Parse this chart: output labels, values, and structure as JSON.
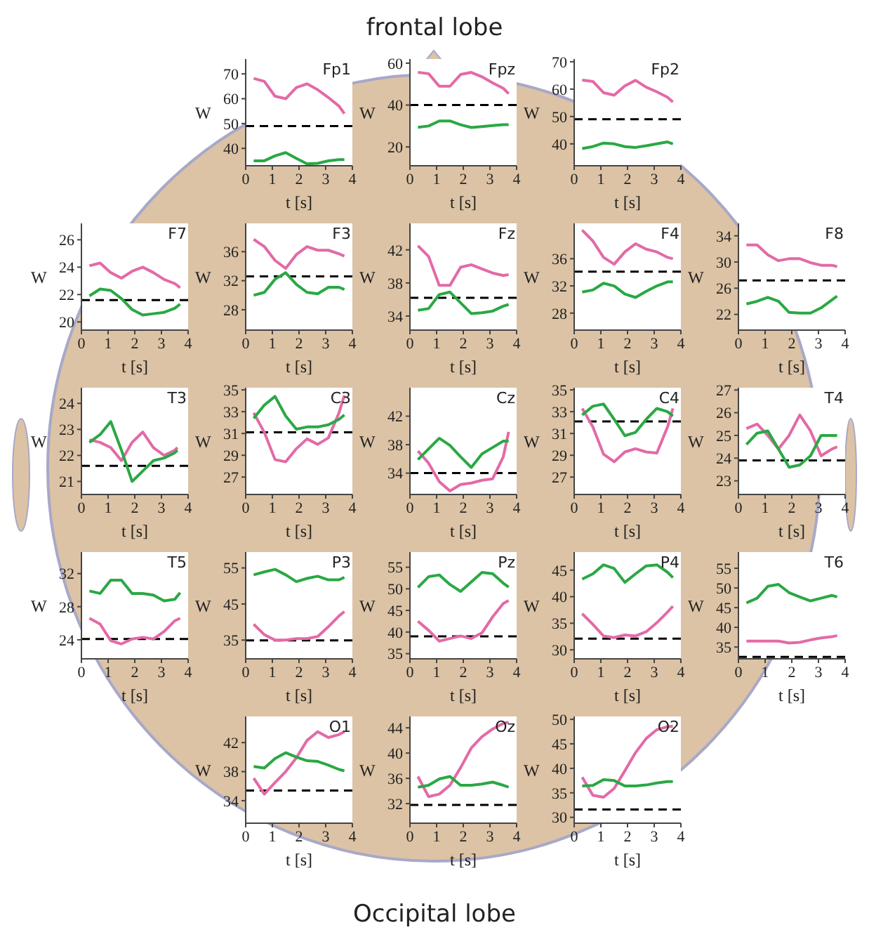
{
  "chart_data": [
    {
      "type": "other",
      "annotations": [
        "frontal lobe",
        "Occipital lobe"
      ]
    },
    {
      "type": "line",
      "title": "Fp1",
      "xlabel": "t [s]",
      "ylabel": "W",
      "x": [
        0.3,
        0.7,
        1.1,
        1.5,
        1.9,
        2.3,
        2.7,
        3.1,
        3.5,
        3.7
      ],
      "xlim": [
        0,
        4
      ],
      "xticks": [
        0,
        1,
        2,
        3,
        4
      ],
      "ylim": [
        33,
        76
      ],
      "yticks": [
        40,
        50,
        60,
        70
      ],
      "series": [
        {
          "color": "#e36aa6",
          "values": [
            68.2,
            67,
            61,
            60,
            64.5,
            66,
            63.6,
            60.5,
            57,
            54
          ]
        },
        {
          "color": "#2aa844",
          "values": [
            35,
            35,
            37,
            38.3,
            36,
            33.8,
            34,
            35,
            35.5,
            35.5
          ]
        }
      ],
      "ref_lines": [
        {
          "axis": "y",
          "value": 49,
          "color": "#000000",
          "line_style": "dashed"
        }
      ]
    },
    {
      "type": "line",
      "title": "Fpz",
      "xlabel": "t [s]",
      "ylabel": "W",
      "x": [
        0.3,
        0.7,
        1.1,
        1.5,
        1.9,
        2.3,
        2.7,
        3.1,
        3.5,
        3.7
      ],
      "xlim": [
        0,
        4
      ],
      "xticks": [
        0,
        1,
        2,
        3,
        4
      ],
      "ylim": [
        11,
        62
      ],
      "yticks": [
        20,
        40,
        60
      ],
      "series": [
        {
          "color": "#e36aa6",
          "values": [
            55.6,
            55,
            49,
            49,
            54.6,
            55.6,
            53.5,
            50.6,
            48,
            45.4
          ]
        },
        {
          "color": "#2aa844",
          "values": [
            29.4,
            30,
            32.4,
            32.4,
            30.6,
            29.3,
            29.7,
            30.2,
            30.6,
            30.6
          ]
        }
      ],
      "ref_lines": [
        {
          "axis": "y",
          "value": 40,
          "color": "#000000",
          "line_style": "dashed"
        }
      ]
    },
    {
      "type": "line",
      "title": "Fp2",
      "xlabel": "t [s]",
      "ylabel": "W",
      "x": [
        0.3,
        0.7,
        1.1,
        1.5,
        1.9,
        2.3,
        2.7,
        3.1,
        3.5,
        3.7
      ],
      "xlim": [
        0,
        4
      ],
      "xticks": [
        0,
        1,
        2,
        3,
        4
      ],
      "ylim": [
        32,
        71
      ],
      "yticks": [
        40,
        50,
        60,
        70
      ],
      "series": [
        {
          "color": "#e36aa6",
          "values": [
            63.3,
            62.8,
            58.7,
            57.8,
            61.2,
            63.2,
            60.7,
            59,
            57,
            55.3
          ]
        },
        {
          "color": "#2aa844",
          "values": [
            38.3,
            39,
            40.3,
            40,
            39,
            38.7,
            39.3,
            40,
            40.7,
            40
          ]
        }
      ],
      "ref_lines": [
        {
          "axis": "y",
          "value": 49,
          "color": "#000000",
          "line_style": "dashed"
        }
      ]
    },
    {
      "type": "line",
      "title": "F7",
      "xlabel": "t [s]",
      "ylabel": "W",
      "x": [
        0.3,
        0.7,
        1.1,
        1.5,
        1.9,
        2.3,
        2.7,
        3.1,
        3.5,
        3.7
      ],
      "xlim": [
        0,
        4
      ],
      "xticks": [
        0,
        1,
        2,
        3,
        4
      ],
      "ylim": [
        19.4,
        27.2
      ],
      "yticks": [
        20,
        22,
        24,
        26
      ],
      "series": [
        {
          "color": "#e36aa6",
          "values": [
            24.1,
            24.3,
            23.6,
            23.2,
            23.7,
            24,
            23.6,
            23.1,
            22.8,
            22.5
          ]
        },
        {
          "color": "#2aa844",
          "values": [
            21.9,
            22.4,
            22.3,
            21.7,
            20.9,
            20.5,
            20.6,
            20.7,
            21,
            21.3
          ]
        }
      ],
      "ref_lines": [
        {
          "axis": "y",
          "value": 21.6,
          "color": "#000000",
          "line_style": "dashed"
        }
      ]
    },
    {
      "type": "line",
      "title": "F3",
      "xlabel": "t [s]",
      "ylabel": "W",
      "x": [
        0.3,
        0.7,
        1.1,
        1.5,
        1.9,
        2.3,
        2.7,
        3.1,
        3.5,
        3.7
      ],
      "xlim": [
        0,
        4
      ],
      "xticks": [
        0,
        1,
        2,
        3,
        4
      ],
      "ylim": [
        25.2,
        39.9
      ],
      "yticks": [
        28,
        32,
        36
      ],
      "series": [
        {
          "color": "#e36aa6",
          "values": [
            37.7,
            36.7,
            34.8,
            33.7,
            35.6,
            36.7,
            36.2,
            36.2,
            35.7,
            35.4
          ]
        },
        {
          "color": "#2aa844",
          "values": [
            30,
            30.4,
            32.2,
            33.1,
            31.5,
            30.4,
            30.2,
            31.1,
            31.1,
            30.8
          ]
        }
      ],
      "ref_lines": [
        {
          "axis": "y",
          "value": 32.6,
          "color": "#000000",
          "line_style": "dashed"
        }
      ]
    },
    {
      "type": "line",
      "title": "Fz",
      "xlabel": "t [s]",
      "ylabel": "W",
      "x": [
        0.3,
        0.7,
        1.1,
        1.5,
        1.9,
        2.3,
        2.7,
        3.1,
        3.5,
        3.7
      ],
      "xlim": [
        0,
        4
      ],
      "xticks": [
        0,
        1,
        2,
        3,
        4
      ],
      "ylim": [
        32.3,
        45.2
      ],
      "yticks": [
        34,
        38,
        42
      ],
      "series": [
        {
          "color": "#e36aa6",
          "values": [
            42.5,
            41.2,
            37.7,
            37.7,
            39.9,
            40.2,
            39.7,
            39.2,
            38.9,
            39
          ]
        },
        {
          "color": "#2aa844",
          "values": [
            34.7,
            34.9,
            36.6,
            36.9,
            35.6,
            34.3,
            34.4,
            34.6,
            35.2,
            35.4
          ]
        }
      ],
      "ref_lines": [
        {
          "axis": "y",
          "value": 36.2,
          "color": "#000000",
          "line_style": "dashed"
        }
      ]
    },
    {
      "type": "line",
      "title": "F4",
      "xlabel": "t [s]",
      "ylabel": "W",
      "x": [
        0.3,
        0.7,
        1.1,
        1.5,
        1.9,
        2.3,
        2.7,
        3.1,
        3.5,
        3.7
      ],
      "xlim": [
        0,
        4
      ],
      "xticks": [
        0,
        1,
        2,
        3,
        4
      ],
      "ylim": [
        25.5,
        41.2
      ],
      "yticks": [
        28,
        32,
        36
      ],
      "series": [
        {
          "color": "#e36aa6",
          "values": [
            40.2,
            38.6,
            36.2,
            35.2,
            37,
            38.2,
            37.4,
            37,
            36.2,
            36
          ]
        },
        {
          "color": "#2aa844",
          "values": [
            31.1,
            31.4,
            32.4,
            32,
            30.8,
            30.3,
            31.2,
            32,
            32.6,
            32.6
          ]
        }
      ],
      "ref_lines": [
        {
          "axis": "y",
          "value": 34.1,
          "color": "#000000",
          "line_style": "dashed"
        }
      ]
    },
    {
      "type": "line",
      "title": "F8",
      "xlabel": "t [s]",
      "ylabel": "W",
      "x": [
        0.3,
        0.7,
        1.1,
        1.5,
        1.9,
        2.3,
        2.7,
        3.1,
        3.5,
        3.7
      ],
      "xlim": [
        0,
        4
      ],
      "xticks": [
        0,
        1,
        2,
        3,
        4
      ],
      "ylim": [
        19.6,
        35.9
      ],
      "yticks": [
        22,
        26,
        30,
        34
      ],
      "series": [
        {
          "color": "#e36aa6",
          "values": [
            32.6,
            32.6,
            31.1,
            30.2,
            30.5,
            30.5,
            29.9,
            29.5,
            29.5,
            29.3
          ]
        },
        {
          "color": "#2aa844",
          "values": [
            23.6,
            24,
            24.6,
            24,
            22.3,
            22.2,
            22.2,
            23,
            24.2,
            24.8
          ]
        }
      ],
      "ref_lines": [
        {
          "axis": "y",
          "value": 27.2,
          "color": "#000000",
          "line_style": "dashed"
        }
      ]
    },
    {
      "type": "line",
      "title": "T3",
      "xlabel": "t [s]",
      "ylabel": "W",
      "x": [
        0.3,
        0.7,
        1.1,
        1.5,
        1.9,
        2.3,
        2.7,
        3.1,
        3.5,
        3.6
      ],
      "xlim": [
        0,
        4
      ],
      "xticks": [
        0,
        1,
        2,
        3,
        4
      ],
      "ylim": [
        20.5,
        24.6
      ],
      "yticks": [
        21,
        22,
        23,
        24
      ],
      "series": [
        {
          "color": "#e36aa6",
          "values": [
            22.6,
            22.5,
            22.3,
            21.8,
            22.5,
            22.9,
            22.3,
            22,
            22.2,
            22.3
          ]
        },
        {
          "color": "#2aa844",
          "values": [
            22.5,
            22.8,
            23.3,
            22.2,
            21,
            21.4,
            21.8,
            21.9,
            22.1,
            22.2
          ]
        }
      ],
      "ref_lines": [
        {
          "axis": "y",
          "value": 21.6,
          "color": "#000000",
          "line_style": "dashed"
        }
      ]
    },
    {
      "type": "line",
      "title": "C3",
      "xlabel": "t [s]",
      "ylabel": "W",
      "x": [
        0.3,
        0.7,
        1.1,
        1.5,
        1.9,
        2.3,
        2.7,
        3.1,
        3.5,
        3.7
      ],
      "xlim": [
        0,
        4
      ],
      "xticks": [
        0,
        1,
        2,
        3,
        4
      ],
      "ylim": [
        25.4,
        35.2
      ],
      "yticks": [
        27,
        29,
        31,
        33,
        35
      ],
      "series": [
        {
          "color": "#e36aa6",
          "values": [
            32.9,
            31.1,
            28.6,
            28.4,
            29.6,
            30.5,
            30,
            30.6,
            32.9,
            34.5
          ]
        },
        {
          "color": "#2aa844",
          "values": [
            32.4,
            33.6,
            34.4,
            32.6,
            31.4,
            31.6,
            31.6,
            31.8,
            32.3,
            32.7
          ]
        }
      ],
      "ref_lines": [
        {
          "axis": "y",
          "value": 31.1,
          "color": "#000000",
          "line_style": "dashed"
        }
      ]
    },
    {
      "type": "line",
      "title": "Cz",
      "xlabel": "t [s]",
      "ylabel": "W",
      "x": [
        0.3,
        0.7,
        1.1,
        1.5,
        1.9,
        2.3,
        2.7,
        3.1,
        3.5,
        3.7
      ],
      "xlim": [
        0,
        4
      ],
      "xticks": [
        0,
        1,
        2,
        3,
        4
      ],
      "ylim": [
        31,
        46
      ],
      "yticks": [
        34,
        38,
        42
      ],
      "series": [
        {
          "color": "#e36aa6",
          "values": [
            37.1,
            35.4,
            32.8,
            31.5,
            32.4,
            32.6,
            33,
            33.2,
            36.3,
            39.8
          ]
        },
        {
          "color": "#2aa844",
          "values": [
            35.9,
            37.4,
            38.9,
            37.9,
            36.3,
            34.8,
            36.7,
            37.6,
            38.5,
            38.5
          ]
        }
      ],
      "ref_lines": [
        {
          "axis": "y",
          "value": 34,
          "color": "#000000",
          "line_style": "dashed"
        }
      ]
    },
    {
      "type": "line",
      "title": "C4",
      "xlabel": "t [s]",
      "ylabel": "W",
      "x": [
        0.3,
        0.7,
        1.1,
        1.5,
        1.9,
        2.3,
        2.7,
        3.1,
        3.5,
        3.7
      ],
      "xlim": [
        0,
        4
      ],
      "xticks": [
        0,
        1,
        2,
        3,
        4
      ],
      "ylim": [
        25.4,
        35.2
      ],
      "yticks": [
        27,
        29,
        31,
        33,
        35
      ],
      "series": [
        {
          "color": "#e36aa6",
          "values": [
            33.3,
            31.6,
            29.1,
            28.4,
            29.3,
            29.6,
            29.3,
            29.2,
            31.6,
            33.3
          ]
        },
        {
          "color": "#2aa844",
          "values": [
            32.7,
            33.5,
            33.7,
            32.3,
            30.8,
            31.1,
            32.3,
            33.3,
            33,
            32.6
          ]
        }
      ],
      "ref_lines": [
        {
          "axis": "y",
          "value": 32.1,
          "color": "#000000",
          "line_style": "dashed"
        }
      ]
    },
    {
      "type": "line",
      "title": "T4",
      "xlabel": "t [s]",
      "ylabel": "W",
      "x": [
        0.3,
        0.7,
        1.1,
        1.5,
        1.9,
        2.3,
        2.7,
        3.1,
        3.5,
        3.7
      ],
      "xlim": [
        0,
        4
      ],
      "xticks": [
        0,
        1,
        2,
        3,
        4
      ],
      "ylim": [
        22.4,
        27.1
      ],
      "yticks": [
        23,
        24,
        25,
        26,
        27
      ],
      "series": [
        {
          "color": "#e36aa6",
          "values": [
            25.3,
            25.5,
            25,
            24.4,
            25,
            25.9,
            25.2,
            24.1,
            24.4,
            24.5
          ]
        },
        {
          "color": "#2aa844",
          "values": [
            24.6,
            25.1,
            25.2,
            24.4,
            23.6,
            23.7,
            24.1,
            25,
            25,
            25
          ]
        }
      ],
      "ref_lines": [
        {
          "axis": "y",
          "value": 23.9,
          "color": "#000000",
          "line_style": "dashed"
        }
      ]
    },
    {
      "type": "line",
      "title": "T5",
      "xlabel": "t [s]",
      "ylabel": "W",
      "x": [
        0.3,
        0.7,
        1.1,
        1.5,
        1.9,
        2.3,
        2.7,
        3.1,
        3.5,
        3.7
      ],
      "xlim": [
        0,
        4
      ],
      "xticks": [
        0,
        1,
        2,
        3,
        4
      ],
      "ylim": [
        21.7,
        34.6
      ],
      "yticks": [
        24,
        28,
        32
      ],
      "series": [
        {
          "color": "#e36aa6",
          "values": [
            26.6,
            25.9,
            23.9,
            23.5,
            24.1,
            24.3,
            24.1,
            25,
            26.3,
            26.6
          ]
        },
        {
          "color": "#2aa844",
          "values": [
            29.9,
            29.6,
            31.2,
            31.2,
            29.6,
            29.6,
            29.4,
            28.7,
            28.9,
            29.7
          ]
        }
      ],
      "ref_lines": [
        {
          "axis": "y",
          "value": 24.1,
          "color": "#000000",
          "line_style": "dashed"
        }
      ]
    },
    {
      "type": "line",
      "title": "P3",
      "xlabel": "t [s]",
      "ylabel": "W",
      "x": [
        0.3,
        0.7,
        1.1,
        1.5,
        1.9,
        2.3,
        2.7,
        3.1,
        3.5,
        3.7
      ],
      "xlim": [
        0,
        4
      ],
      "xticks": [
        0,
        1,
        2,
        3,
        4
      ],
      "ylim": [
        29.8,
        59.4
      ],
      "yticks": [
        35,
        45,
        55
      ],
      "series": [
        {
          "color": "#e36aa6",
          "values": [
            39.4,
            36.5,
            35,
            35,
            35.4,
            35.4,
            36,
            38.7,
            41.7,
            42.9
          ]
        },
        {
          "color": "#2aa844",
          "values": [
            53.1,
            53.9,
            54.6,
            53.1,
            51.2,
            52.1,
            52.7,
            51.7,
            51.7,
            52.4
          ]
        }
      ],
      "ref_lines": [
        {
          "axis": "y",
          "value": 34.9,
          "color": "#000000",
          "line_style": "dashed"
        }
      ]
    },
    {
      "type": "line",
      "title": "Pz",
      "xlabel": "t [s]",
      "ylabel": "W",
      "x": [
        0.3,
        0.7,
        1.1,
        1.5,
        1.9,
        2.3,
        2.7,
        3.1,
        3.5,
        3.7
      ],
      "xlim": [
        0,
        4
      ],
      "xticks": [
        0,
        1,
        2,
        3,
        4
      ],
      "ylim": [
        33.8,
        58.5
      ],
      "yticks": [
        35,
        40,
        45,
        50,
        55
      ],
      "series": [
        {
          "color": "#e36aa6",
          "values": [
            42.5,
            40.4,
            37.9,
            38.5,
            39.1,
            38.5,
            39.8,
            43.5,
            46.6,
            47.3
          ]
        },
        {
          "color": "#2aa844",
          "values": [
            50.3,
            52.8,
            53.2,
            51,
            49.4,
            51.6,
            53.8,
            53.5,
            51.3,
            50.4
          ]
        }
      ],
      "ref_lines": [
        {
          "axis": "y",
          "value": 39,
          "color": "#000000",
          "line_style": "dashed"
        }
      ]
    },
    {
      "type": "line",
      "title": "P4",
      "xlabel": "t [s]",
      "ylabel": "W",
      "x": [
        0.3,
        0.7,
        1.1,
        1.5,
        1.9,
        2.3,
        2.7,
        3.1,
        3.5,
        3.7
      ],
      "xlim": [
        0,
        4
      ],
      "xticks": [
        0,
        1,
        2,
        3,
        4
      ],
      "ylim": [
        28.3,
        48.4
      ],
      "yticks": [
        30,
        35,
        40,
        45
      ],
      "series": [
        {
          "color": "#e36aa6",
          "values": [
            36.8,
            34.8,
            32.6,
            32.3,
            32.8,
            32.6,
            33.4,
            35.1,
            37.1,
            38.2
          ]
        },
        {
          "color": "#2aa844",
          "values": [
            43.3,
            44.3,
            46,
            45.3,
            42.7,
            44.3,
            45.8,
            46,
            44.6,
            43.6
          ]
        }
      ],
      "ref_lines": [
        {
          "axis": "y",
          "value": 32.1,
          "color": "#000000",
          "line_style": "dashed"
        }
      ]
    },
    {
      "type": "line",
      "title": "T6",
      "xlabel": "t [s]",
      "ylabel": "W",
      "x": [
        0.3,
        0.7,
        1.1,
        1.5,
        1.9,
        2.3,
        2.7,
        3.1,
        3.5,
        3.7
      ],
      "xlim": [
        0,
        4
      ],
      "xticks": [
        0,
        1,
        2,
        3,
        4
      ],
      "ylim": [
        32,
        59.1
      ],
      "yticks": [
        35,
        40,
        45,
        50,
        55
      ],
      "series": [
        {
          "color": "#e36aa6",
          "values": [
            36.5,
            36.5,
            36.5,
            36.5,
            36,
            36.2,
            36.8,
            37.3,
            37.6,
            37.9
          ]
        },
        {
          "color": "#2aa844",
          "values": [
            46.2,
            47.4,
            50.4,
            50.9,
            48.8,
            47.7,
            46.7,
            47.4,
            48.1,
            47.7
          ]
        }
      ],
      "ref_lines": [
        {
          "axis": "y",
          "value": 32.5,
          "color": "#000000",
          "line_style": "dashed"
        }
      ]
    },
    {
      "type": "line",
      "title": "O1",
      "xlabel": "t [s]",
      "ylabel": "W",
      "x": [
        0.3,
        0.7,
        1.1,
        1.5,
        1.9,
        2.3,
        2.7,
        3.1,
        3.5,
        3.7
      ],
      "xlim": [
        0,
        4
      ],
      "xticks": [
        0,
        1,
        2,
        3,
        4
      ],
      "ylim": [
        30.9,
        45.6
      ],
      "yticks": [
        34,
        38,
        42
      ],
      "series": [
        {
          "color": "#e36aa6",
          "values": [
            37.1,
            34.9,
            36.5,
            38,
            39.9,
            42.3,
            43.5,
            42.7,
            43.1,
            43.5
          ]
        },
        {
          "color": "#2aa844",
          "values": [
            38.7,
            38.5,
            39.8,
            40.6,
            40,
            39.5,
            39.4,
            38.9,
            38.3,
            38.1
          ]
        }
      ],
      "ref_lines": [
        {
          "axis": "y",
          "value": 35.4,
          "color": "#000000",
          "line_style": "dashed"
        }
      ]
    },
    {
      "type": "line",
      "title": "Oz",
      "xlabel": "t [s]",
      "ylabel": "W",
      "x": [
        0.3,
        0.7,
        1.1,
        1.5,
        1.9,
        2.3,
        2.7,
        3.1,
        3.5,
        3.7
      ],
      "xlim": [
        0,
        4
      ],
      "xticks": [
        0,
        1,
        2,
        3,
        4
      ],
      "ylim": [
        28.9,
        45.8
      ],
      "yticks": [
        32,
        36,
        40,
        44
      ],
      "series": [
        {
          "color": "#e36aa6",
          "values": [
            36.3,
            33.1,
            33.5,
            34.9,
            37.7,
            40.8,
            42.6,
            43.8,
            44.7,
            44.9
          ]
        },
        {
          "color": "#2aa844",
          "values": [
            34.6,
            34.9,
            35.9,
            36.3,
            34.9,
            34.9,
            35.1,
            35.4,
            34.9,
            34.6
          ]
        }
      ],
      "ref_lines": [
        {
          "axis": "y",
          "value": 31.8,
          "color": "#000000",
          "line_style": "dashed"
        }
      ]
    },
    {
      "type": "line",
      "title": "O2",
      "xlabel": "t [s]",
      "ylabel": "W",
      "x": [
        0.3,
        0.7,
        1.1,
        1.5,
        1.9,
        2.3,
        2.7,
        3.1,
        3.5,
        3.7
      ],
      "xlim": [
        0,
        4
      ],
      "xticks": [
        0,
        1,
        2,
        3,
        4
      ],
      "ylim": [
        28.8,
        50.6
      ],
      "yticks": [
        30,
        35,
        40,
        45,
        50
      ],
      "series": [
        {
          "color": "#e36aa6",
          "values": [
            38.2,
            34.5,
            34.1,
            35.9,
            39.5,
            43.2,
            46.1,
            47.9,
            48.5,
            48.6
          ]
        },
        {
          "color": "#2aa844",
          "values": [
            36.4,
            36.5,
            37.7,
            37.5,
            36.4,
            36.4,
            36.6,
            37,
            37.3,
            37.3
          ]
        }
      ],
      "ref_lines": [
        {
          "axis": "y",
          "value": 31.6,
          "color": "#000000",
          "line_style": "dashed"
        }
      ]
    }
  ]
}
